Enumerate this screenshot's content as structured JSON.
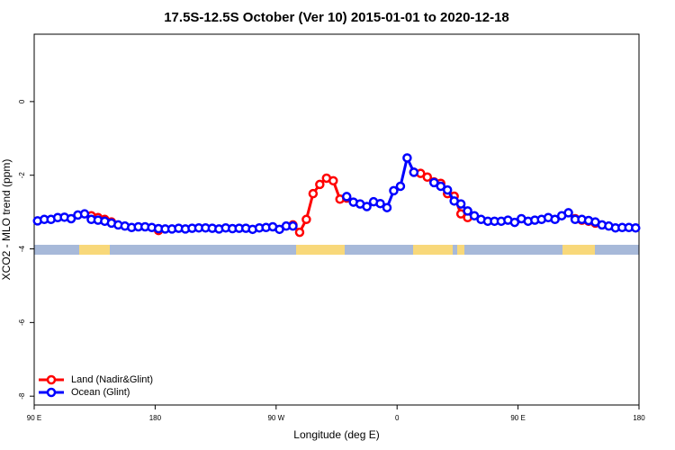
{
  "chart_data": {
    "type": "line",
    "title": "17.5S-12.5S October (Ver 10)   2015-01-01 to 2020-12-18",
    "x_label": "Longitude (deg E)",
    "y_label": "XCO2 - MLO trend (ppm)",
    "x": [
      92.5,
      97.5,
      102.5,
      107.5,
      112.5,
      117.5,
      122.5,
      127.5,
      132.5,
      137.5,
      142.5,
      147.5,
      152.5,
      157.5,
      162.5,
      167.5,
      172.5,
      177.5,
      182.5,
      187.5,
      192.5,
      197.5,
      202.5,
      207.5,
      212.5,
      217.5,
      222.5,
      227.5,
      232.5,
      237.5,
      242.5,
      247.5,
      252.5,
      257.5,
      262.5,
      267.5,
      272.5,
      277.5,
      282.5,
      287.5,
      292.5,
      297.5,
      302.5,
      307.5,
      312.5,
      317.5,
      322.5,
      327.5,
      332.5,
      337.5,
      342.5,
      347.5,
      352.5,
      357.5,
      362.5,
      367.5,
      372.5,
      377.5,
      382.5,
      387.5,
      392.5,
      397.5,
      402.5,
      407.5,
      412.5,
      417.5,
      422.5,
      427.5,
      432.5,
      437.5,
      442.5,
      447.5,
      452.5,
      457.5,
      462.5,
      467.5,
      472.5,
      477.5,
      482.5,
      487.5,
      492.5,
      497.5,
      502.5,
      507.5,
      512.5,
      517.5,
      522.5,
      527.5,
      532.5,
      537.5
    ],
    "series": [
      {
        "name": "Land (Nadir&Glint)",
        "color": "#ff0000",
        "values": [
          null,
          null,
          null,
          null,
          null,
          null,
          null,
          null,
          -3.1,
          -3.15,
          -3.2,
          -3.27,
          null,
          null,
          null,
          null,
          null,
          null,
          -3.5,
          null,
          null,
          null,
          null,
          null,
          null,
          null,
          null,
          null,
          null,
          null,
          null,
          null,
          null,
          null,
          null,
          null,
          null,
          null,
          -3.35,
          -3.55,
          -3.2,
          -2.5,
          -2.25,
          -2.08,
          -2.15,
          -2.65,
          -2.62,
          null,
          null,
          null,
          null,
          null,
          null,
          null,
          null,
          null,
          -1.92,
          -1.95,
          -2.05,
          -2.18,
          -2.22,
          -2.5,
          -2.57,
          -3.05,
          -3.15,
          null,
          null,
          null,
          null,
          null,
          null,
          null,
          null,
          null,
          null,
          null,
          null,
          null,
          null,
          null,
          -3.18,
          -3.22,
          -3.25,
          -3.3,
          null,
          null,
          null,
          null,
          null,
          null
        ]
      },
      {
        "name": "Ocean (Glint)",
        "color": "#0000ff",
        "values": [
          -3.24,
          -3.2,
          -3.2,
          -3.15,
          -3.14,
          -3.18,
          -3.08,
          -3.05,
          -3.2,
          -3.22,
          -3.25,
          -3.3,
          -3.35,
          -3.38,
          -3.42,
          -3.4,
          -3.4,
          -3.42,
          -3.45,
          -3.46,
          -3.46,
          -3.44,
          -3.46,
          -3.44,
          -3.43,
          -3.43,
          -3.44,
          -3.46,
          -3.43,
          -3.45,
          -3.44,
          -3.44,
          -3.47,
          -3.43,
          -3.42,
          -3.4,
          -3.47,
          -3.38,
          -3.38,
          null,
          null,
          null,
          null,
          null,
          null,
          null,
          -2.58,
          -2.73,
          -2.78,
          -2.85,
          -2.72,
          -2.77,
          -2.88,
          -2.42,
          -2.3,
          -1.53,
          -1.92,
          null,
          null,
          -2.2,
          -2.3,
          -2.4,
          -2.7,
          -2.78,
          -2.97,
          -3.1,
          -3.2,
          -3.25,
          -3.25,
          -3.25,
          -3.22,
          -3.28,
          -3.18,
          -3.25,
          -3.22,
          -3.2,
          -3.15,
          -3.2,
          -3.1,
          -3.02,
          -3.2,
          -3.2,
          -3.23,
          -3.27,
          -3.35,
          -3.38,
          -3.43,
          -3.42,
          -3.42,
          -3.43
        ]
      }
    ],
    "xlim": [
      90,
      540
    ],
    "xticks": [
      {
        "value": 90,
        "label": "90 E"
      },
      180,
      {
        "value": 270,
        "label": "90 W"
      },
      {
        "value": 360,
        "label": "0"
      },
      {
        "value": 450,
        "label": "90 E"
      },
      {
        "value": 540,
        "label": "180"
      }
    ],
    "ylim": [
      -8.24,
      1.83
    ],
    "yticks": [
      -8,
      -6,
      -4,
      -2,
      0
    ],
    "legend": "bottomleft"
  }
}
